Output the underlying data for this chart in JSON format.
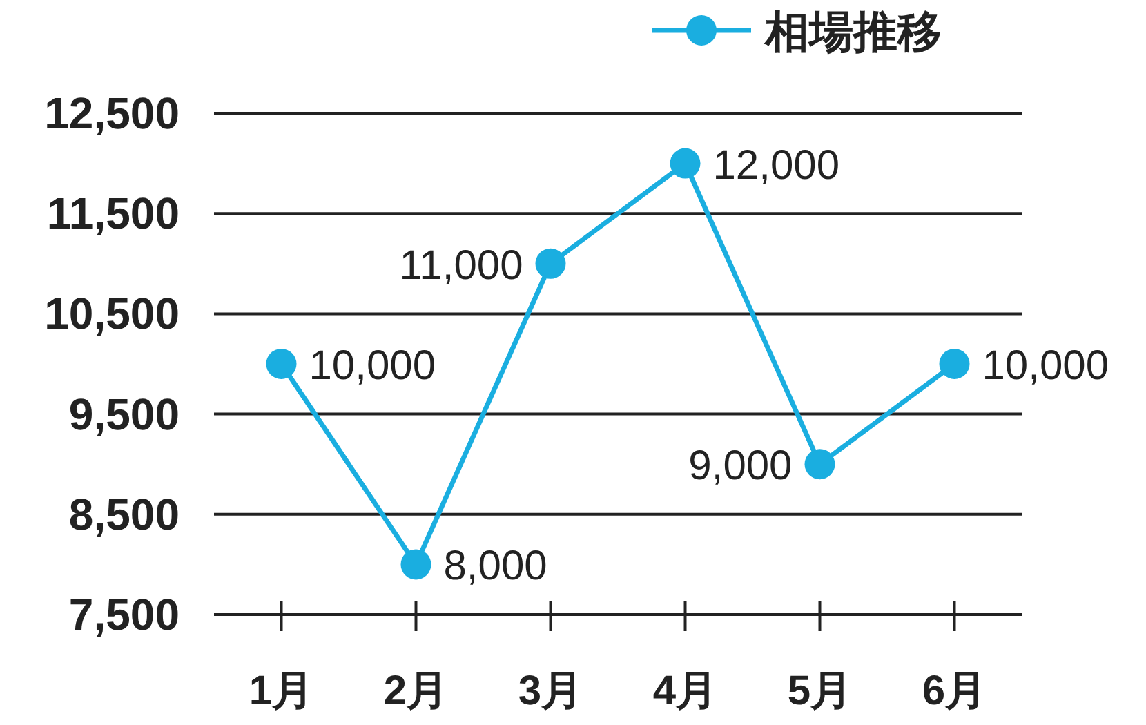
{
  "chart_data": {
    "type": "line",
    "categories": [
      "1月",
      "2月",
      "3月",
      "4月",
      "5月",
      "6月"
    ],
    "series": [
      {
        "name": "相場推移",
        "color": "#1aaee0",
        "values": [
          10000,
          8000,
          11000,
          12000,
          9000,
          10000
        ],
        "value_labels": [
          "10,000",
          "8,000",
          "11,000",
          "12,000",
          "9,000",
          "10,000"
        ]
      }
    ],
    "ylim": [
      7500,
      12500
    ],
    "yticks": [
      {
        "value": 7500,
        "label": "7,500"
      },
      {
        "value": 8500,
        "label": "8,500"
      },
      {
        "value": 9500,
        "label": "9,500"
      },
      {
        "value": 10500,
        "label": "10,500"
      },
      {
        "value": 11500,
        "label": "11,500"
      },
      {
        "value": 12500,
        "label": "12,500"
      }
    ],
    "grid": "y",
    "legend": "top right",
    "marker": "circle",
    "line_style": "solid"
  }
}
